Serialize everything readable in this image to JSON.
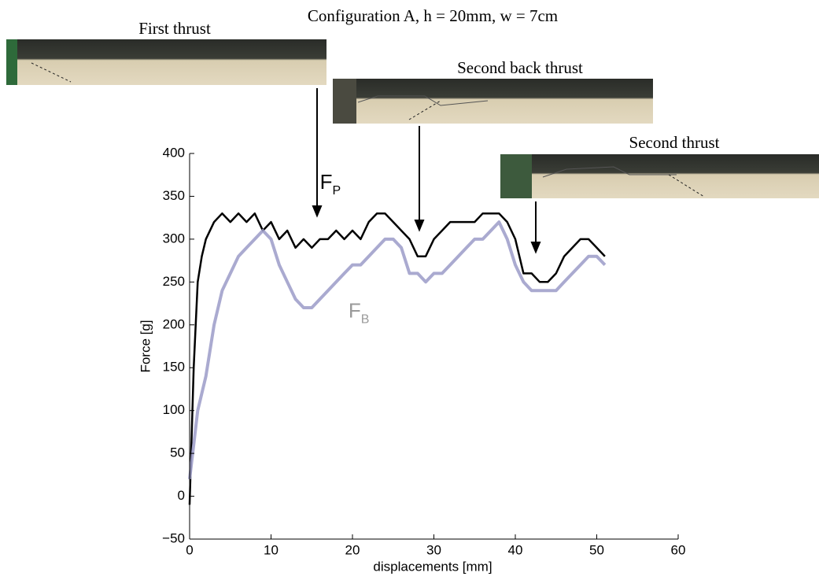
{
  "chart_data": {
    "type": "line",
    "title": "Configuration A, h = 20mm, w = 7cm",
    "x_label": "displacements [mm]",
    "y_label": "Force [g]",
    "annotations": [
      "First thrust",
      "Second back thrust",
      "Second thrust"
    ],
    "x": [
      0,
      0.5,
      1,
      1.5,
      2,
      3,
      4,
      5,
      6,
      7,
      8,
      9,
      10,
      11,
      12,
      13,
      14,
      15,
      16,
      17,
      18,
      19,
      20,
      21,
      22,
      23,
      24,
      25,
      26,
      27,
      28,
      29,
      30,
      31,
      32,
      33,
      34,
      35,
      36,
      37,
      38,
      39,
      40,
      41,
      42,
      43,
      44,
      45,
      46,
      47,
      48,
      49,
      50,
      51
    ],
    "series": [
      {
        "name": "F",
        "subscript": "P",
        "color": "#000000",
        "label_color": "#000000",
        "values": [
          -10,
          150,
          250,
          280,
          300,
          320,
          330,
          320,
          330,
          320,
          330,
          310,
          320,
          300,
          310,
          290,
          300,
          290,
          300,
          300,
          310,
          300,
          310,
          300,
          320,
          330,
          330,
          320,
          310,
          300,
          280,
          280,
          300,
          310,
          320,
          320,
          320,
          320,
          330,
          330,
          330,
          320,
          300,
          260,
          260,
          250,
          250,
          260,
          280,
          290,
          300,
          300,
          290,
          280
        ]
      },
      {
        "name": "F",
        "subscript": "B",
        "color": "#9b9bc8",
        "label_color": "#9a9a9a",
        "values": [
          20,
          60,
          100,
          120,
          140,
          200,
          240,
          260,
          280,
          290,
          300,
          310,
          300,
          270,
          250,
          230,
          220,
          220,
          230,
          240,
          250,
          260,
          270,
          270,
          280,
          290,
          300,
          300,
          290,
          260,
          260,
          250,
          260,
          260,
          270,
          280,
          290,
          300,
          300,
          310,
          320,
          300,
          270,
          250,
          240,
          240,
          240,
          240,
          250,
          260,
          270,
          280,
          280,
          270
        ]
      }
    ],
    "xlim": [
      0,
      60
    ],
    "xticks": [
      0,
      10,
      20,
      30,
      40,
      50,
      60
    ],
    "ylim": [
      -50,
      400
    ],
    "yticks": [
      {
        "value": -50,
        "label": "−50"
      },
      0,
      50,
      100,
      150,
      200,
      250,
      300,
      350,
      400
    ],
    "grid": false
  }
}
